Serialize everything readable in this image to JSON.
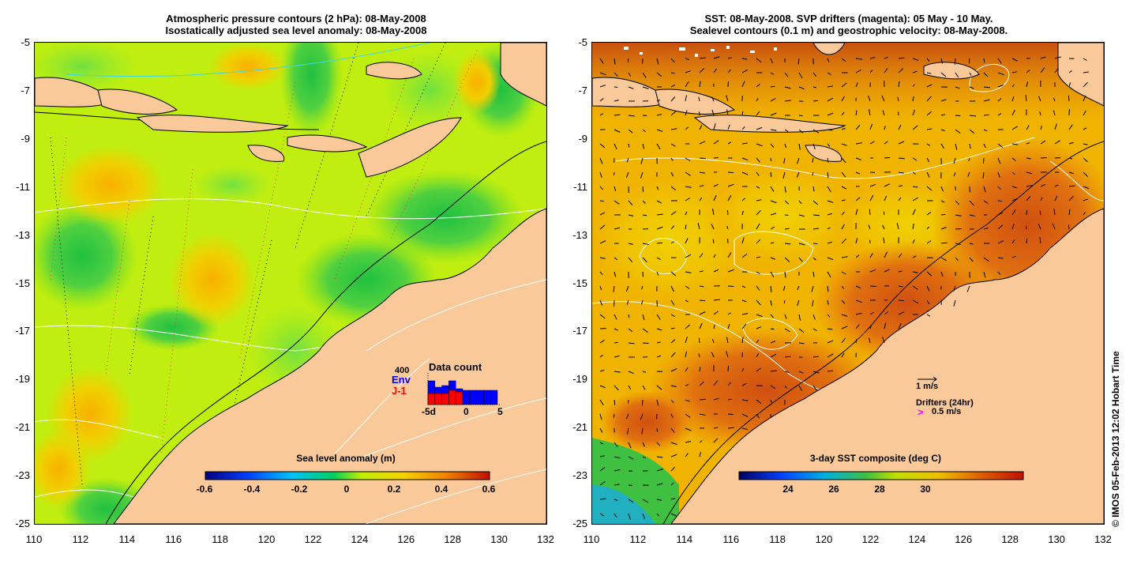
{
  "left_panel": {
    "title_line1": "Atmospheric pressure contours (2 hPa): 08-May-2008",
    "title_line2": "Isostatically adjusted sea level anomaly: 08-May-2008",
    "colorbar_title": "Sea level anomaly (m)",
    "colorbar_ticks": [
      "-0.6",
      "-0.4",
      "-0.2",
      "0",
      "0.2",
      "0.4",
      "0.6"
    ],
    "inset": {
      "title": "Data count",
      "scale_label": "400",
      "series1": "Env",
      "series2": "J-1",
      "x_ticks": [
        "-5d",
        "0",
        "5"
      ],
      "series1_color": "#0000ff",
      "series2_color": "#ff0000"
    }
  },
  "right_panel": {
    "title_line1": "SST: 08-May-2008. SVP drifters (magenta): 05 May - 10 May.",
    "title_line2": "Sealevel contours (0.1 m) and geostrophic velocity: 08-May-2008.",
    "colorbar_title": "3-day SST composite (deg C)",
    "colorbar_ticks": [
      "24",
      "26",
      "28",
      "30"
    ],
    "velocity_scale": "1 m/s",
    "drifters_label": "Drifters (24hr)",
    "drifter_scale": "0.5 m/s",
    "drifter_marker": ">",
    "drifter_color": "#ff00ff"
  },
  "axes": {
    "y_ticks": [
      "-5",
      "-7",
      "-9",
      "-11",
      "-13",
      "-15",
      "-17",
      "-19",
      "-21",
      "-23",
      "-25"
    ],
    "x_ticks": [
      "110",
      "112",
      "114",
      "116",
      "118",
      "120",
      "122",
      "124",
      "126",
      "128",
      "130",
      "132"
    ]
  },
  "credit": "© IMOS 05-Feb-2013 12:02 Hobart Time",
  "colors": {
    "land": "#f9c99a",
    "sla_base": "#c8f000",
    "sst_base": "#f0a000"
  }
}
